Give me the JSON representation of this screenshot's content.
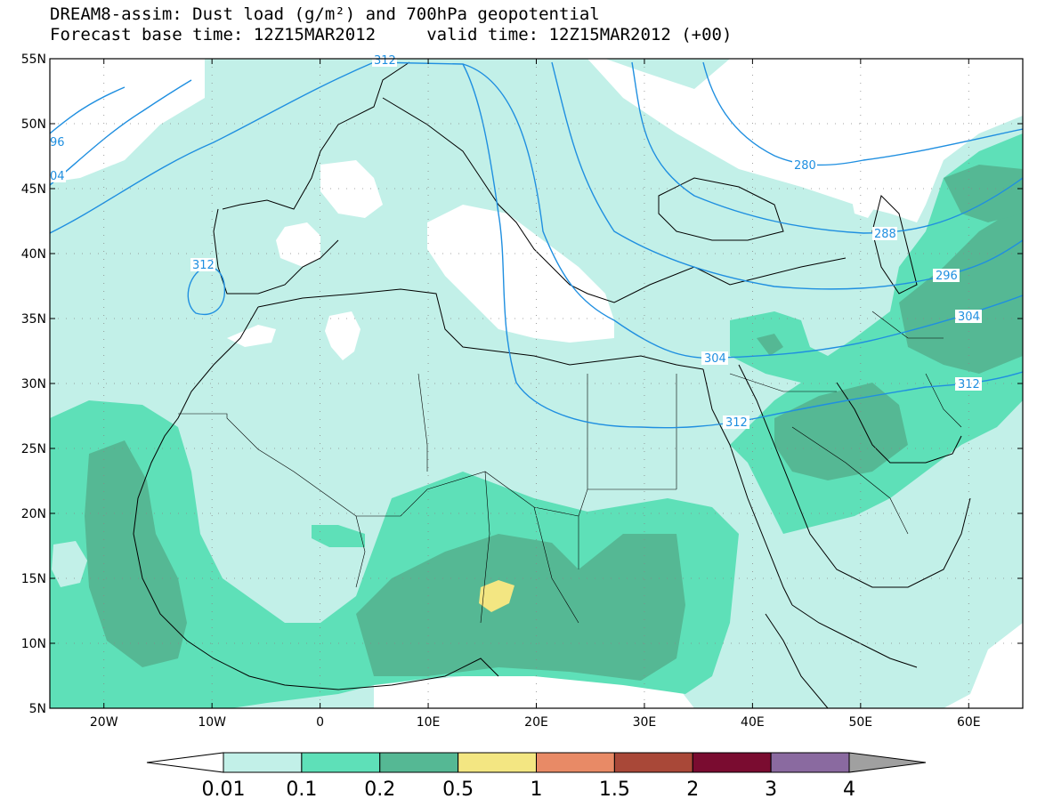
{
  "header": {
    "title_line1": "DREAM8-assim: Dust load (g/m²) and 700hPa geopotential",
    "title_line2": "Forecast base time: 12Z15MAR2012     valid time: 12Z15MAR2012 (+00)"
  },
  "map": {
    "lon_range": [
      -25,
      65
    ],
    "lat_range": [
      5,
      55
    ],
    "lat_ticks": [
      "5N",
      "10N",
      "15N",
      "20N",
      "25N",
      "30N",
      "35N",
      "40N",
      "45N",
      "50N",
      "55N"
    ],
    "lon_ticks": [
      "20W",
      "10W",
      "0",
      "10E",
      "20E",
      "30E",
      "40E",
      "50E",
      "60E"
    ],
    "contour_color": "#1f8fe0",
    "geopotential_labels": [
      "312",
      "96",
      "04",
      "312",
      "280",
      "288",
      "296",
      "304",
      "304",
      "312",
      "312"
    ]
  },
  "colorbar": {
    "colors": [
      "#ffffff",
      "#c2f0e8",
      "#5ee0b8",
      "#55b894",
      "#f3e682",
      "#e88a66",
      "#a94838",
      "#7a0c30",
      "#8a6aa0",
      "#a0a0a0"
    ],
    "labels": [
      "0.01",
      "0.1",
      "0.2",
      "0.5",
      "1",
      "1.5",
      "2",
      "3",
      "4"
    ]
  }
}
